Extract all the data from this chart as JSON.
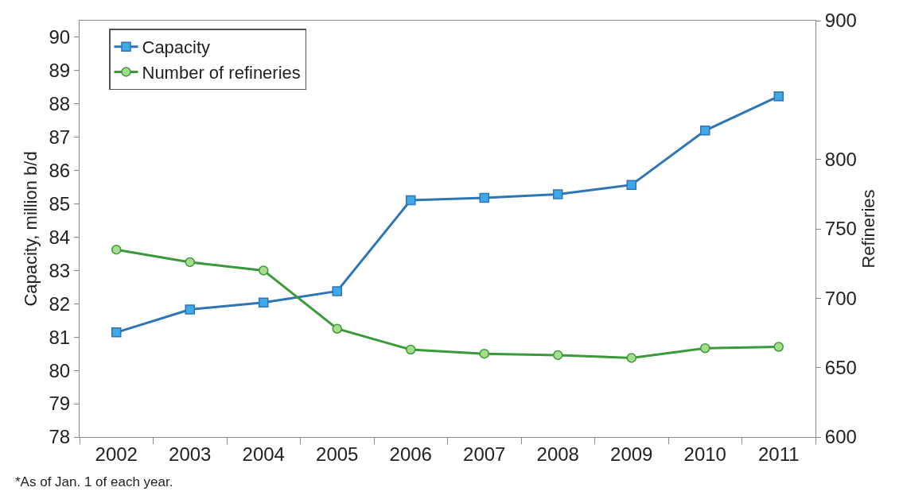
{
  "chart_data": {
    "type": "line",
    "categories": [
      "2002",
      "2003",
      "2004",
      "2005",
      "2006",
      "2007",
      "2008",
      "2009",
      "2010",
      "2011"
    ],
    "series": [
      {
        "name": "Capacity",
        "color": "#2e75b6",
        "marker": "square",
        "values": [
          81.14,
          81.83,
          82.04,
          82.38,
          85.11,
          85.18,
          85.29,
          85.57,
          87.2,
          88.23
        ]
      },
      {
        "name": "Number of refineries",
        "color": "#3a9a3a",
        "marker": "circle",
        "axis": "y2",
        "values": [
          735,
          726,
          720,
          678,
          663,
          660,
          659,
          657,
          664,
          665
        ]
      }
    ],
    "ylabel": "Capacity, million b/d",
    "y2label": "Refineries",
    "ylim": [
      78,
      90.5
    ],
    "yticks": [
      78,
      79,
      80,
      81,
      82,
      83,
      84,
      85,
      86,
      87,
      88,
      89,
      90
    ],
    "y2lim": [
      600,
      900
    ],
    "y2ticks": [
      600,
      650,
      700,
      750,
      800,
      900
    ],
    "grid": false,
    "legend": "top left",
    "line_style": "solid",
    "annotations": [
      "*As of Jan. 1 of each year."
    ]
  }
}
